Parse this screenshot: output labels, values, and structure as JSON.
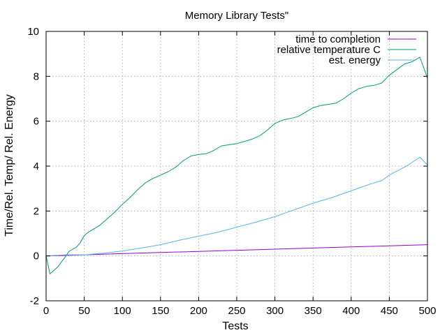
{
  "chart_data": {
    "type": "line",
    "title": "Memory Library Tests\"",
    "xlabel": "Tests",
    "ylabel": "Time/Rel. Temp/ Rel. Energy",
    "xlim": [
      0,
      500
    ],
    "ylim": [
      -2,
      10
    ],
    "xticks": [
      0,
      50,
      100,
      150,
      200,
      250,
      300,
      350,
      400,
      450,
      500
    ],
    "yticks": [
      -2,
      0,
      2,
      4,
      6,
      8,
      10
    ],
    "grid": true,
    "legend_position": "top-right",
    "series": [
      {
        "name": "time to completion",
        "color": "#9400d3",
        "x": [
          0,
          50,
          100,
          150,
          200,
          250,
          300,
          350,
          400,
          450,
          500
        ],
        "y": [
          0.0,
          0.05,
          0.1,
          0.15,
          0.2,
          0.25,
          0.3,
          0.35,
          0.4,
          0.45,
          0.5
        ]
      },
      {
        "name": "relative temperature C",
        "color": "#009e73",
        "x": [
          0,
          5,
          15,
          25,
          30,
          35,
          40,
          45,
          50,
          55,
          60,
          70,
          80,
          90,
          100,
          110,
          120,
          130,
          140,
          150,
          160,
          170,
          180,
          190,
          200,
          210,
          220,
          230,
          240,
          250,
          260,
          270,
          280,
          290,
          300,
          310,
          320,
          330,
          340,
          350,
          360,
          370,
          380,
          390,
          400,
          410,
          420,
          430,
          440,
          450,
          460,
          470,
          480,
          485,
          490,
          495,
          500
        ],
        "y": [
          0,
          -0.8,
          -0.5,
          -0.05,
          0.2,
          0.3,
          0.4,
          0.6,
          0.9,
          1.05,
          1.15,
          1.35,
          1.65,
          1.95,
          2.3,
          2.6,
          2.95,
          3.25,
          3.45,
          3.6,
          3.75,
          3.95,
          4.25,
          4.45,
          4.52,
          4.55,
          4.7,
          4.9,
          4.95,
          5.0,
          5.1,
          5.2,
          5.35,
          5.6,
          5.9,
          6.05,
          6.12,
          6.2,
          6.4,
          6.6,
          6.7,
          6.75,
          6.8,
          7.0,
          7.25,
          7.45,
          7.55,
          7.6,
          7.7,
          8.05,
          8.3,
          8.55,
          8.65,
          8.75,
          8.85,
          8.4,
          7.9
        ]
      },
      {
        "name": "est. energy",
        "color": "#56b4e9",
        "x": [
          0,
          25,
          50,
          75,
          100,
          125,
          150,
          175,
          200,
          225,
          250,
          275,
          300,
          325,
          350,
          375,
          400,
          425,
          440,
          450,
          475,
          490,
          500
        ],
        "y": [
          0,
          0.05,
          0.05,
          0.12,
          0.22,
          0.35,
          0.5,
          0.7,
          0.88,
          1.05,
          1.28,
          1.5,
          1.75,
          2.05,
          2.35,
          2.6,
          2.9,
          3.2,
          3.35,
          3.6,
          4.05,
          4.4,
          4.05
        ]
      }
    ]
  }
}
